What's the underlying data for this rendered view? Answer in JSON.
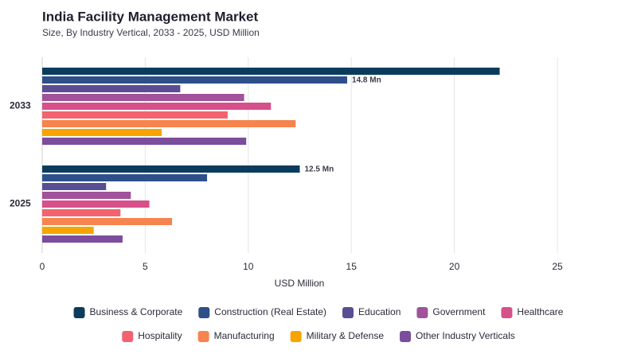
{
  "chart_data": {
    "type": "bar",
    "orientation": "horizontal",
    "title": "India Facility Management Market",
    "subtitle": "Size, By Industry Vertical, 2033 - 2025, USD Million",
    "x_label": "USD Million",
    "categories": [
      "2033",
      "2025"
    ],
    "series": [
      {
        "name": "Business & Corporate",
        "color": "#0b3c5d",
        "values": [
          22.2,
          12.5
        ],
        "value_labels": [
          null,
          "12.5 Mn"
        ]
      },
      {
        "name": "Construction (Real Estate)",
        "color": "#2e4f8a",
        "values": [
          14.8,
          8.0
        ],
        "value_labels": [
          "14.8 Mn",
          null
        ]
      },
      {
        "name": "Education",
        "color": "#5a4d94",
        "values": [
          6.7,
          3.1
        ]
      },
      {
        "name": "Government",
        "color": "#a0529a",
        "values": [
          9.8,
          4.3
        ]
      },
      {
        "name": "Healthcare",
        "color": "#d6508a",
        "values": [
          11.1,
          5.2
        ]
      },
      {
        "name": "Hospitality",
        "color": "#f3636f",
        "values": [
          9.0,
          3.8
        ]
      },
      {
        "name": "Manufacturing",
        "color": "#f6844e",
        "values": [
          12.3,
          6.3
        ]
      },
      {
        "name": "Military & Defense",
        "color": "#f6a500",
        "values": [
          5.8,
          2.5
        ]
      },
      {
        "name": "Other Industry Verticals",
        "color": "#7b4d9c",
        "values": [
          9.9,
          3.9
        ]
      }
    ],
    "xlim": [
      0,
      25
    ],
    "xticks": [
      0,
      5,
      10,
      15,
      20,
      25
    ],
    "grid": true,
    "legend": "bottom"
  }
}
